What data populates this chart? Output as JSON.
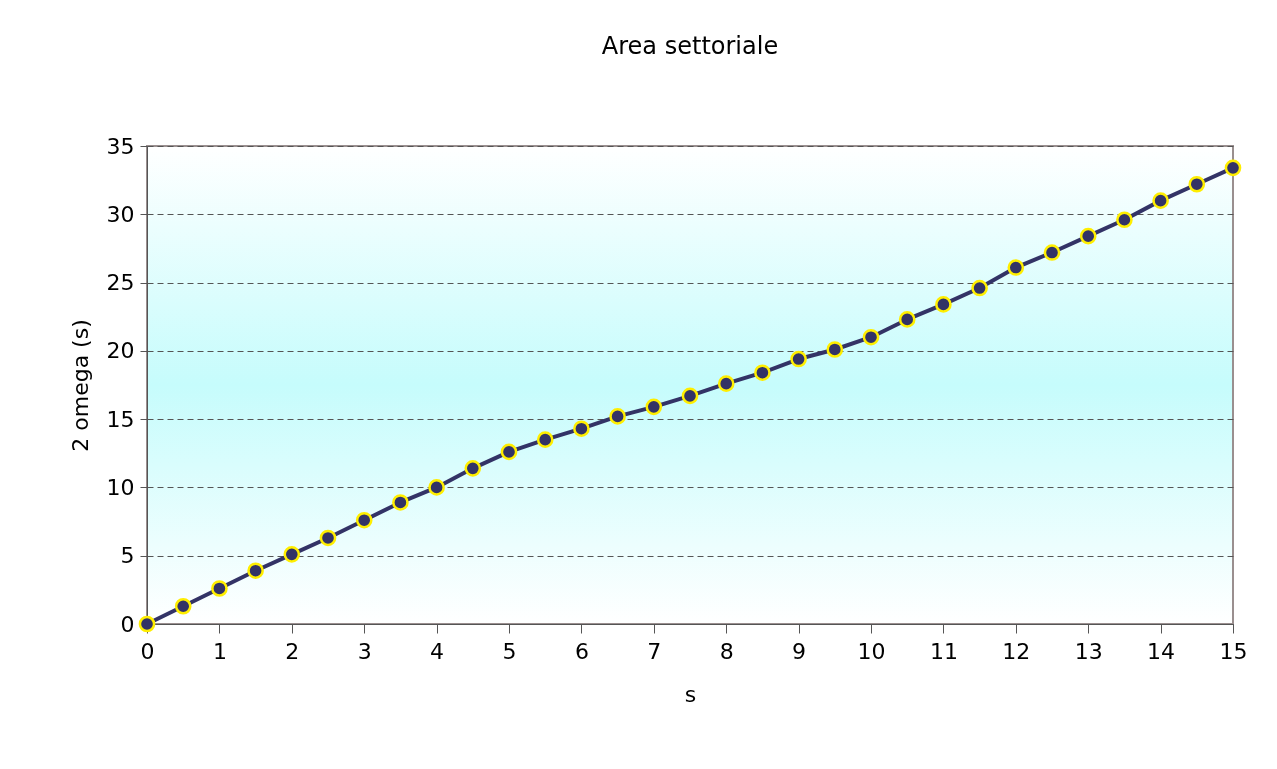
{
  "chart_data": {
    "type": "line",
    "title": "Area settoriale",
    "xlabel": "s",
    "ylabel": "2 omega (s)",
    "x": [
      0,
      0.5,
      1,
      1.5,
      2,
      2.5,
      3,
      3.5,
      4,
      4.5,
      5,
      5.5,
      6,
      6.5,
      7,
      7.5,
      8,
      8.5,
      9,
      9.5,
      10,
      10.5,
      11,
      11.5,
      12,
      12.5,
      13,
      13.5,
      14,
      14.5,
      15
    ],
    "series": [
      {
        "color": "#333366",
        "values": [
          0,
          1.3,
          2.6,
          3.9,
          5.1,
          6.3,
          7.6,
          8.9,
          10.0,
          11.4,
          12.6,
          13.5,
          14.3,
          15.2,
          15.9,
          16.7,
          17.6,
          18.4,
          19.4,
          20.1,
          21.0,
          22.3,
          23.4,
          24.6,
          26.1,
          27.2,
          28.4,
          29.6,
          31.0,
          32.2,
          33.4
        ]
      }
    ],
    "xlim": [
      0,
      15
    ],
    "xticks": [
      0,
      1,
      2,
      3,
      4,
      5,
      6,
      7,
      8,
      9,
      10,
      11,
      12,
      13,
      14,
      15
    ],
    "ylim": [
      0,
      35
    ],
    "yticks": [
      0,
      5,
      10,
      15,
      20,
      25,
      30,
      35
    ],
    "grid": "y",
    "marker": "circle",
    "line_style": "solid",
    "legend": false
  }
}
